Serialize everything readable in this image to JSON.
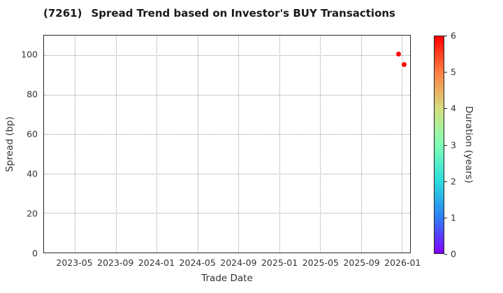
{
  "title": {
    "code": "(7261)",
    "text": "Spread Trend based on Investor's BUY Transactions"
  },
  "chart_data": {
    "type": "scatter",
    "title": "(7261)   Spread Trend based on Investor's BUY Transactions",
    "xlabel": "Trade Date",
    "ylabel": "Spread (bp)",
    "grid": true,
    "grid_style": "dotted",
    "x_ticks": [
      "2023-05",
      "2023-09",
      "2024-01",
      "2024-05",
      "2024-09",
      "2025-01",
      "2025-05",
      "2025-09",
      "2026-01"
    ],
    "y_ticks": [
      0,
      20,
      40,
      60,
      80,
      100
    ],
    "x_range": [
      "2023-01-30",
      "2026-01-25"
    ],
    "y_range": [
      0,
      110
    ],
    "points": [
      {
        "date": "2025-12-17",
        "spread_bp": 100.7,
        "duration_years": 6.0
      },
      {
        "date": "2026-01-03",
        "spread_bp": 95.5,
        "duration_years": 6.0
      }
    ],
    "point_color": "#ff0000",
    "colorbar": {
      "label": "Duration (years)",
      "min": 0,
      "max": 6,
      "ticks": [
        0,
        1,
        2,
        3,
        4,
        5,
        6
      ],
      "colormap": "rainbow",
      "stops": [
        "#8000ff",
        "#2b80f6",
        "#2bdddd",
        "#80ffb4",
        "#d5dd80",
        "#ff8042",
        "#ff0000"
      ]
    }
  }
}
